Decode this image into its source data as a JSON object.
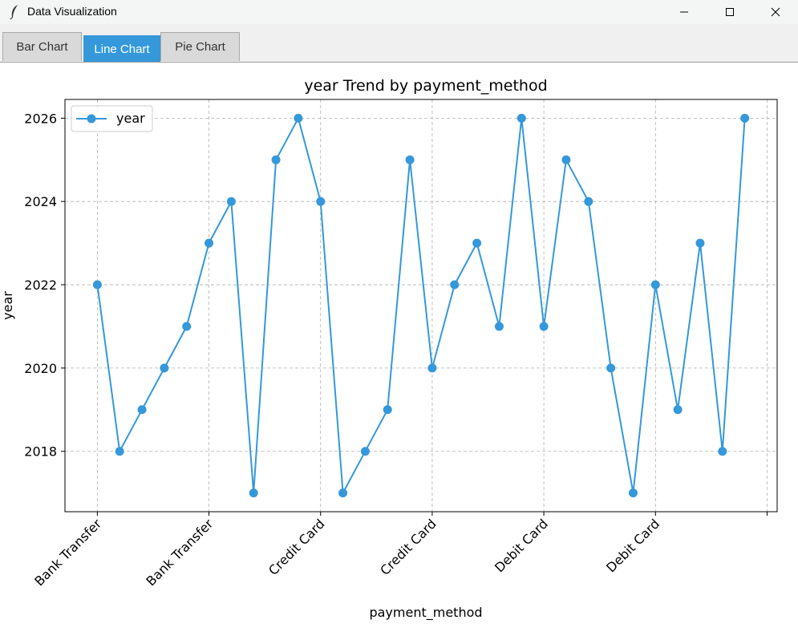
{
  "window": {
    "title": "Data Visualization",
    "icon": "feather-icon",
    "controls": [
      "minimize-icon",
      "maximize-icon",
      "close-icon"
    ]
  },
  "tabs": [
    {
      "label": "Bar Chart",
      "active": false
    },
    {
      "label": "Line Chart",
      "active": true
    },
    {
      "label": "Pie Chart",
      "active": false
    }
  ],
  "colors": {
    "accent": "#3498db",
    "line": "#3498db",
    "grid": "#b0b0b0"
  },
  "chart_data": {
    "type": "line",
    "title": "year Trend by payment_method",
    "xlabel": "payment_method",
    "ylabel": "year",
    "x_tick_labels": [
      "Bank Transfer",
      "Bank Transfer",
      "Credit Card",
      "Credit Card",
      "Debit Card",
      "Debit Card",
      ""
    ],
    "x_tick_index": [
      0,
      5,
      10,
      15,
      20,
      25,
      30
    ],
    "yticks": [
      2018,
      2020,
      2022,
      2024,
      2026
    ],
    "ylim": [
      2016.55,
      2026.45
    ],
    "xlim": [
      -1.45,
      30.45
    ],
    "grid": true,
    "legend": {
      "position": "top-left",
      "entries": [
        "year"
      ]
    },
    "series": [
      {
        "name": "year",
        "values": [
          2022,
          2018,
          2019,
          2020,
          2021,
          2023,
          2024,
          2017,
          2025,
          2026,
          2024,
          2017,
          2018,
          2019,
          2025,
          2020,
          2022,
          2023,
          2021,
          2026,
          2021,
          2025,
          2024,
          2020,
          2017,
          2022,
          2019,
          2023,
          2018,
          2026
        ]
      }
    ]
  }
}
